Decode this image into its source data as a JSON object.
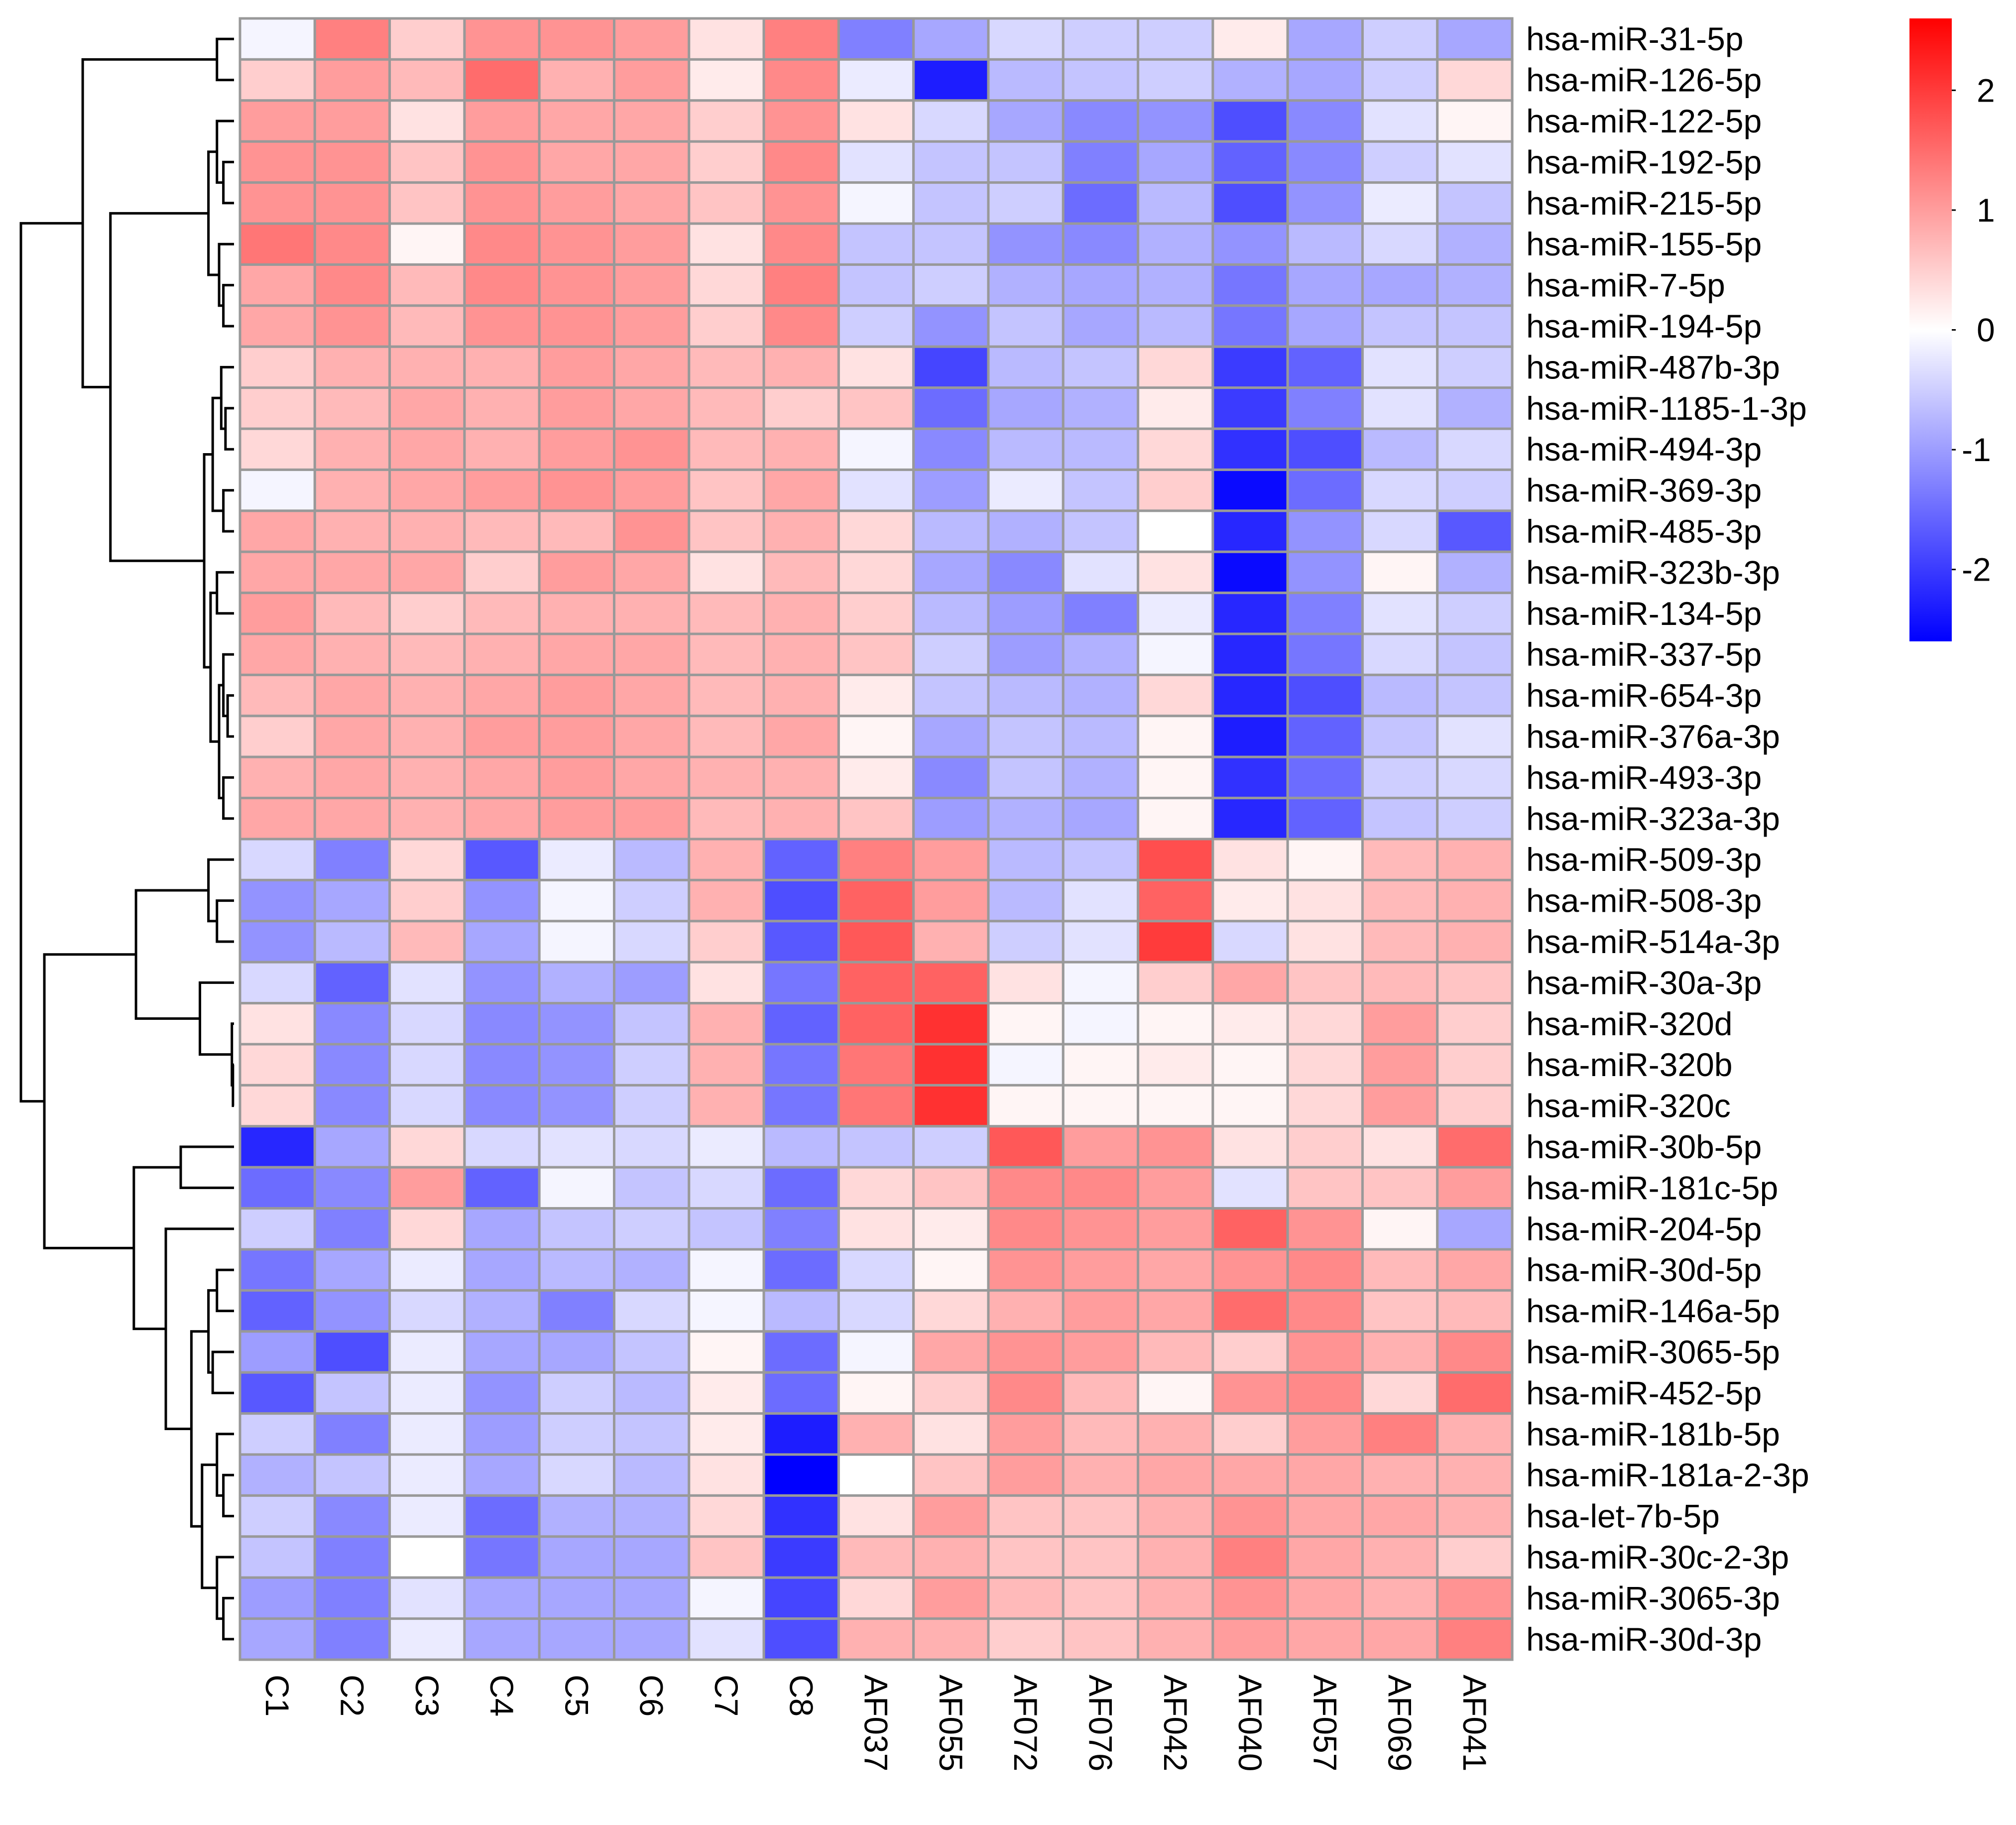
{
  "chart_data": {
    "type": "heatmap",
    "title": "",
    "xlabel": "",
    "ylabel": "",
    "columns": [
      "C1",
      "C2",
      "C3",
      "C4",
      "C5",
      "C6",
      "C7",
      "C8",
      "AF037",
      "AF055",
      "AF072",
      "AF076",
      "AF042",
      "AF040",
      "AF057",
      "AF069",
      "AF041"
    ],
    "rows": [
      "hsa-miR-31-5p",
      "hsa-miR-126-5p",
      "hsa-miR-122-5p",
      "hsa-miR-192-5p",
      "hsa-miR-215-5p",
      "hsa-miR-155-5p",
      "hsa-miR-7-5p",
      "hsa-miR-194-5p",
      "hsa-miR-487b-3p",
      "hsa-miR-1185-1-3p",
      "hsa-miR-494-3p",
      "hsa-miR-369-3p",
      "hsa-miR-485-3p",
      "hsa-miR-323b-3p",
      "hsa-miR-134-5p",
      "hsa-miR-337-5p",
      "hsa-miR-654-3p",
      "hsa-miR-376a-3p",
      "hsa-miR-493-3p",
      "hsa-miR-323a-3p",
      "hsa-miR-509-3p",
      "hsa-miR-508-3p",
      "hsa-miR-514a-3p",
      "hsa-miR-30a-3p",
      "hsa-miR-320d",
      "hsa-miR-320b",
      "hsa-miR-320c",
      "hsa-miR-30b-5p",
      "hsa-miR-181c-5p",
      "hsa-miR-204-5p",
      "hsa-miR-30d-5p",
      "hsa-miR-146a-5p",
      "hsa-miR-3065-5p",
      "hsa-miR-452-5p",
      "hsa-miR-181b-5p",
      "hsa-miR-181a-2-3p",
      "hsa-let-7b-5p",
      "hsa-miR-30c-2-3p",
      "hsa-miR-3065-3p",
      "hsa-miR-30d-3p"
    ],
    "values": [
      [
        -0.1,
        1.3,
        0.5,
        1.1,
        1.1,
        1.0,
        0.3,
        1.3,
        -1.3,
        -0.9,
        -0.4,
        -0.5,
        -0.5,
        0.2,
        -0.9,
        -0.5,
        -0.9
      ],
      [
        0.5,
        1.0,
        0.7,
        1.5,
        0.8,
        1.0,
        0.2,
        1.2,
        -0.2,
        -2.3,
        -0.7,
        -0.6,
        -0.5,
        -0.8,
        -0.9,
        -0.5,
        0.4
      ],
      [
        1.0,
        1.0,
        0.3,
        1.0,
        0.9,
        0.9,
        0.5,
        1.1,
        0.3,
        -0.4,
        -0.9,
        -1.2,
        -1.1,
        -1.8,
        -1.2,
        -0.3,
        0.1
      ],
      [
        1.1,
        1.1,
        0.6,
        1.1,
        0.9,
        0.9,
        0.5,
        1.2,
        -0.3,
        -0.6,
        -0.6,
        -1.3,
        -0.9,
        -1.6,
        -1.2,
        -0.5,
        -0.3
      ],
      [
        1.1,
        1.1,
        0.6,
        1.1,
        1.0,
        0.9,
        0.6,
        1.1,
        -0.1,
        -0.6,
        -0.5,
        -1.5,
        -0.7,
        -1.8,
        -1.1,
        -0.2,
        -0.6
      ],
      [
        1.4,
        1.2,
        0.1,
        1.2,
        1.1,
        1.0,
        0.3,
        1.2,
        -0.6,
        -0.6,
        -1.1,
        -1.2,
        -0.8,
        -1.1,
        -0.7,
        -0.4,
        -0.8
      ],
      [
        0.9,
        1.2,
        0.7,
        1.2,
        1.1,
        1.0,
        0.4,
        1.3,
        -0.6,
        -0.5,
        -0.8,
        -0.9,
        -0.8,
        -1.4,
        -0.9,
        -0.9,
        -0.8
      ],
      [
        0.9,
        1.1,
        0.7,
        1.1,
        1.1,
        1.0,
        0.5,
        1.2,
        -0.5,
        -1.1,
        -0.6,
        -0.9,
        -0.7,
        -1.4,
        -0.9,
        -0.6,
        -0.6
      ],
      [
        0.5,
        0.8,
        0.8,
        0.8,
        1.0,
        0.9,
        0.7,
        0.8,
        0.3,
        -1.9,
        -0.7,
        -0.6,
        0.4,
        -2.0,
        -1.6,
        -0.3,
        -0.5
      ],
      [
        0.5,
        0.7,
        0.9,
        0.8,
        1.0,
        0.9,
        0.7,
        0.5,
        0.6,
        -1.5,
        -0.9,
        -0.8,
        0.2,
        -2.0,
        -1.3,
        -0.3,
        -0.8
      ],
      [
        0.4,
        0.8,
        0.9,
        0.8,
        1.0,
        1.1,
        0.7,
        0.8,
        -0.1,
        -1.2,
        -0.7,
        -0.7,
        0.4,
        -2.1,
        -1.8,
        -0.7,
        -0.4
      ],
      [
        -0.1,
        0.8,
        0.9,
        1.0,
        1.1,
        1.0,
        0.6,
        0.9,
        -0.3,
        -1.0,
        -0.2,
        -0.6,
        0.5,
        -2.5,
        -1.5,
        -0.4,
        -0.5
      ],
      [
        0.9,
        0.8,
        0.8,
        0.7,
        0.7,
        1.1,
        0.6,
        0.8,
        0.4,
        -0.7,
        -0.8,
        -0.6,
        0.0,
        -2.2,
        -1.1,
        -0.4,
        -1.7
      ],
      [
        0.9,
        0.9,
        0.9,
        0.5,
        1.0,
        0.9,
        0.3,
        0.7,
        0.4,
        -0.9,
        -1.2,
        -0.3,
        0.3,
        -2.5,
        -1.1,
        0.1,
        -0.8
      ],
      [
        1.0,
        0.7,
        0.5,
        0.7,
        0.8,
        0.8,
        0.7,
        0.8,
        0.5,
        -0.7,
        -1.0,
        -1.3,
        -0.2,
        -2.2,
        -1.3,
        -0.3,
        -0.5
      ],
      [
        0.9,
        0.8,
        0.7,
        0.8,
        0.9,
        0.9,
        0.7,
        0.8,
        0.6,
        -0.5,
        -1.0,
        -0.8,
        -0.1,
        -2.2,
        -1.4,
        -0.4,
        -0.6
      ],
      [
        0.7,
        0.9,
        0.8,
        0.9,
        1.0,
        0.9,
        0.7,
        0.8,
        0.2,
        -0.6,
        -0.7,
        -0.8,
        0.4,
        -2.2,
        -1.8,
        -0.7,
        -0.6
      ],
      [
        0.5,
        0.9,
        0.8,
        1.0,
        1.0,
        0.9,
        0.7,
        0.9,
        0.1,
        -0.9,
        -0.6,
        -0.7,
        0.1,
        -2.3,
        -1.6,
        -0.6,
        -0.3
      ],
      [
        0.8,
        0.9,
        0.8,
        0.9,
        1.0,
        0.9,
        0.8,
        0.8,
        0.2,
        -1.2,
        -0.6,
        -0.8,
        0.1,
        -2.1,
        -1.5,
        -0.5,
        -0.4
      ],
      [
        0.9,
        0.9,
        0.8,
        0.9,
        1.0,
        1.0,
        0.7,
        0.8,
        0.6,
        -1.0,
        -0.8,
        -0.9,
        0.1,
        -2.2,
        -1.6,
        -0.6,
        -0.5
      ]
    ],
    "values_lower": [
      [
        -0.4,
        -1.3,
        0.4,
        -1.7,
        -0.2,
        -0.7,
        0.8,
        -1.6,
        1.3,
        1.0,
        -0.7,
        -0.6,
        1.8,
        0.3,
        0.1,
        0.7,
        0.8
      ],
      [
        -1.1,
        -0.9,
        0.5,
        -1.1,
        -0.1,
        -0.5,
        0.8,
        -1.8,
        1.6,
        1.0,
        -0.7,
        -0.3,
        1.6,
        0.2,
        0.3,
        0.7,
        0.8
      ],
      [
        -1.1,
        -0.7,
        0.7,
        -0.9,
        -0.1,
        -0.4,
        0.5,
        -1.7,
        1.7,
        0.8,
        -0.5,
        -0.3,
        2.0,
        -0.4,
        0.3,
        0.7,
        0.8
      ],
      [
        -0.4,
        -1.6,
        -0.3,
        -1.1,
        -0.8,
        -1.0,
        0.3,
        -1.4,
        1.6,
        1.6,
        0.3,
        -0.1,
        0.5,
        0.9,
        0.6,
        0.7,
        0.6
      ],
      [
        0.3,
        -1.2,
        -0.4,
        -1.2,
        -1.1,
        -0.6,
        0.8,
        -1.6,
        1.6,
        2.1,
        0.1,
        -0.1,
        0.1,
        0.2,
        0.4,
        1.0,
        0.5
      ],
      [
        0.4,
        -1.2,
        -0.4,
        -1.2,
        -1.1,
        -0.5,
        0.8,
        -1.4,
        1.4,
        2.1,
        -0.1,
        0.1,
        0.2,
        0.1,
        0.4,
        1.0,
        0.5
      ],
      [
        0.4,
        -1.2,
        -0.4,
        -1.2,
        -1.1,
        -0.5,
        0.8,
        -1.4,
        1.4,
        2.1,
        0.1,
        0.1,
        0.1,
        0.1,
        0.4,
        1.0,
        0.5
      ],
      [
        -2.2,
        -0.9,
        0.4,
        -0.4,
        -0.3,
        -0.4,
        -0.2,
        -0.7,
        -0.6,
        -0.5,
        1.7,
        1.0,
        1.1,
        0.3,
        0.5,
        0.3,
        1.5
      ],
      [
        -1.5,
        -1.2,
        1.0,
        -1.6,
        -0.1,
        -0.6,
        -0.4,
        -1.5,
        0.4,
        0.6,
        1.2,
        1.2,
        1.0,
        -0.3,
        0.6,
        0.6,
        1.0
      ],
      [
        -0.5,
        -1.3,
        0.4,
        -0.9,
        -0.6,
        -0.5,
        -0.6,
        -1.3,
        0.3,
        0.2,
        1.2,
        1.1,
        1.0,
        1.6,
        1.1,
        0.1,
        -0.9
      ],
      [
        -1.4,
        -0.9,
        -0.2,
        -0.9,
        -0.7,
        -0.8,
        -0.1,
        -1.5,
        -0.4,
        0.1,
        1.1,
        1.0,
        0.9,
        1.1,
        1.2,
        0.7,
        0.9
      ],
      [
        -1.6,
        -1.1,
        -0.4,
        -0.8,
        -1.3,
        -0.4,
        -0.1,
        -0.7,
        -0.4,
        0.4,
        0.8,
        1.0,
        0.9,
        1.5,
        1.2,
        0.6,
        0.7
      ],
      [
        -1.0,
        -1.8,
        -0.2,
        -0.9,
        -0.9,
        -0.6,
        0.1,
        -1.5,
        -0.1,
        0.9,
        1.1,
        1.0,
        0.7,
        0.5,
        1.1,
        0.8,
        1.2
      ],
      [
        -1.7,
        -0.6,
        -0.2,
        -1.1,
        -0.5,
        -0.7,
        0.2,
        -1.5,
        0.1,
        0.5,
        1.2,
        0.7,
        0.1,
        1.1,
        1.2,
        0.4,
        1.5
      ],
      [
        -0.5,
        -1.3,
        -0.2,
        -1.0,
        -0.5,
        -0.6,
        0.2,
        -2.3,
        0.8,
        0.3,
        1.0,
        0.7,
        0.8,
        0.5,
        1.0,
        1.3,
        0.8
      ],
      [
        -0.8,
        -0.6,
        -0.2,
        -0.9,
        -0.4,
        -0.7,
        0.3,
        -2.7,
        0.0,
        0.6,
        1.0,
        0.8,
        0.9,
        0.9,
        0.9,
        0.8,
        0.8
      ],
      [
        -0.5,
        -1.2,
        -0.2,
        -1.5,
        -0.8,
        -0.8,
        0.4,
        -2.1,
        0.3,
        1.0,
        0.6,
        0.6,
        0.8,
        1.1,
        0.9,
        0.9,
        0.8
      ],
      [
        -0.6,
        -1.3,
        0.0,
        -1.4,
        -0.9,
        -0.9,
        0.6,
        -2.0,
        0.7,
        0.8,
        0.6,
        0.6,
        0.8,
        1.3,
        0.9,
        0.8,
        0.5
      ],
      [
        -1.0,
        -1.3,
        -0.3,
        -0.9,
        -0.9,
        -0.9,
        -0.1,
        -1.9,
        0.4,
        1.0,
        0.7,
        0.6,
        0.8,
        1.1,
        0.9,
        0.8,
        1.1
      ],
      [
        -0.9,
        -1.3,
        -0.2,
        -0.9,
        -0.9,
        -0.9,
        -0.3,
        -1.8,
        0.8,
        0.8,
        0.5,
        0.6,
        0.8,
        1.0,
        0.9,
        0.9,
        1.3
      ]
    ],
    "color_scale": {
      "min": -2.6,
      "max": 2.6,
      "low": "#0000ff",
      "mid": "#ffffff",
      "high": "#ff0000"
    },
    "legend": {
      "position": "top-right",
      "ticks": [
        2,
        1,
        0,
        -1,
        -2
      ],
      "tick_labels": [
        "2",
        "1",
        "0",
        "-1",
        "-2"
      ]
    },
    "cell_border_color": "#999999",
    "dendrogram_color": "#000000"
  }
}
